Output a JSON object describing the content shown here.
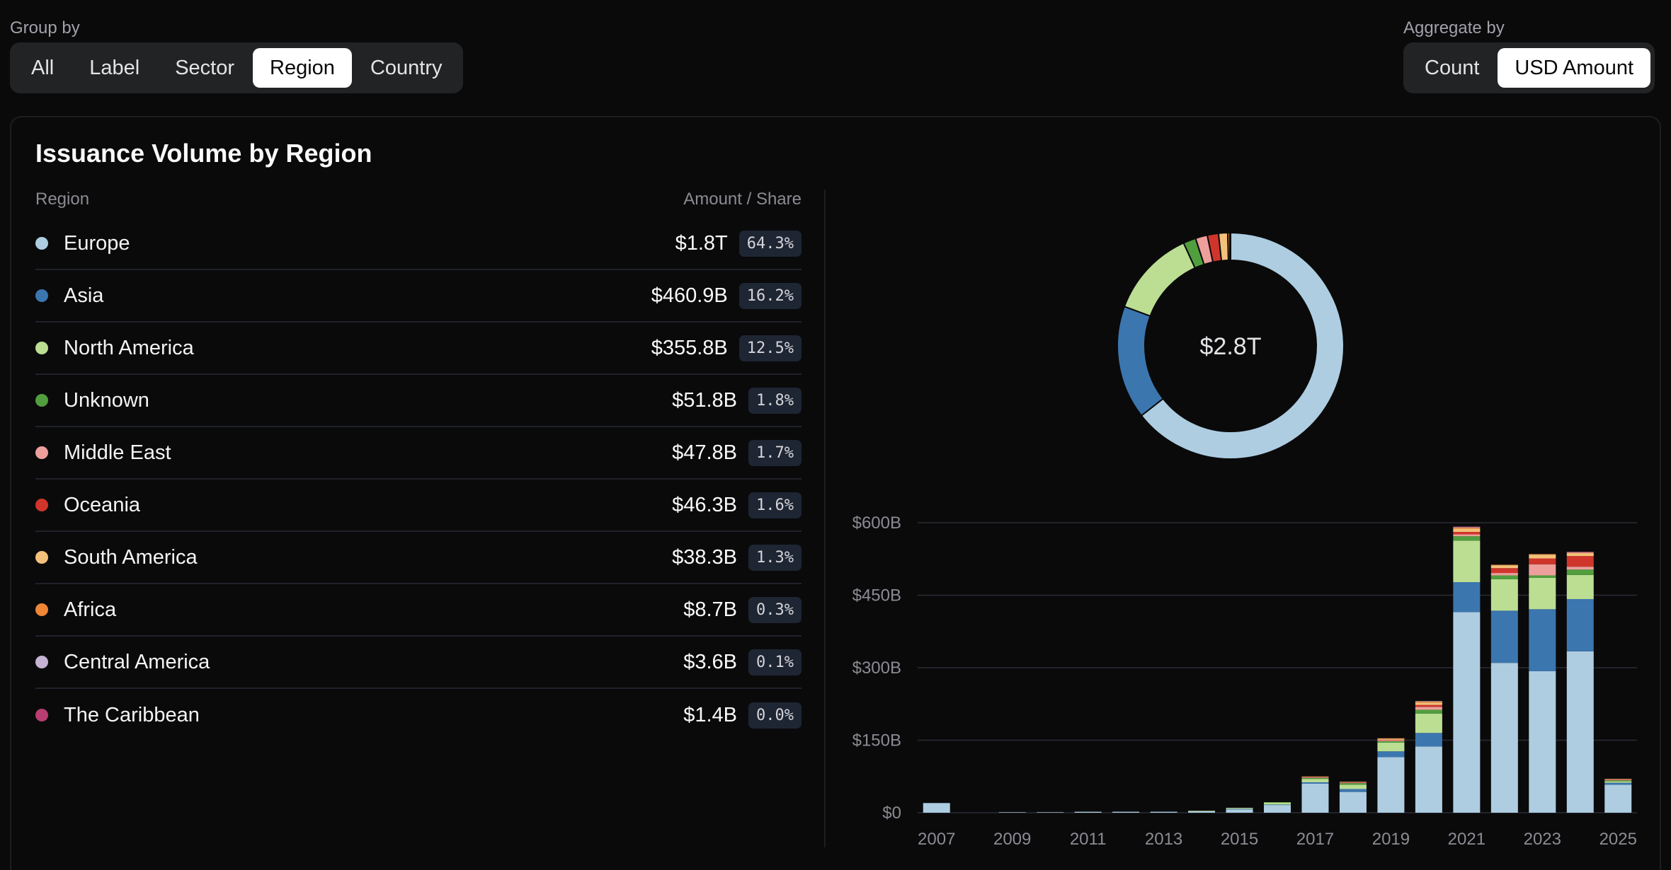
{
  "group_by": {
    "label": "Group by",
    "options": [
      "All",
      "Label",
      "Sector",
      "Region",
      "Country"
    ],
    "selected": "Region"
  },
  "aggregate_by": {
    "label": "Aggregate by",
    "options": [
      "Count",
      "USD Amount"
    ],
    "selected": "USD Amount"
  },
  "card": {
    "title": "Issuance Volume by Region",
    "col_region": "Region",
    "col_amount": "Amount / Share"
  },
  "regions": [
    {
      "name": "Europe",
      "amount": "$1.8T",
      "share": "64.3%",
      "color": "#aecde1"
    },
    {
      "name": "Asia",
      "amount": "$460.9B",
      "share": "16.2%",
      "color": "#3b76af"
    },
    {
      "name": "North America",
      "amount": "$355.8B",
      "share": "12.5%",
      "color": "#bbde93"
    },
    {
      "name": "Unknown",
      "amount": "$51.8B",
      "share": "1.8%",
      "color": "#519e3e"
    },
    {
      "name": "Middle East",
      "amount": "$47.8B",
      "share": "1.7%",
      "color": "#ed9f9c"
    },
    {
      "name": "Oceania",
      "amount": "$46.3B",
      "share": "1.6%",
      "color": "#d0352b"
    },
    {
      "name": "South America",
      "amount": "$38.3B",
      "share": "1.3%",
      "color": "#f3c17b"
    },
    {
      "name": "Africa",
      "amount": "$8.7B",
      "share": "0.3%",
      "color": "#ef8636"
    },
    {
      "name": "Central America",
      "amount": "$3.6B",
      "share": "0.1%",
      "color": "#c6b3d3"
    },
    {
      "name": "The Caribbean",
      "amount": "$1.4B",
      "share": "0.0%",
      "color": "#b83d71"
    }
  ],
  "chart_data": [
    {
      "type": "pie",
      "center_label": "$2.8T",
      "labels": [
        "Europe",
        "Asia",
        "North America",
        "Unknown",
        "Middle East",
        "Oceania",
        "South America",
        "Africa",
        "Central America",
        "The Caribbean"
      ],
      "values": [
        64.3,
        16.2,
        12.5,
        1.8,
        1.7,
        1.6,
        1.3,
        0.3,
        0.1,
        0.0
      ]
    },
    {
      "type": "bar",
      "stacked": true,
      "ylim": [
        0,
        600
      ],
      "yticks": [
        "$0",
        "$150B",
        "$300B",
        "$450B",
        "$600B"
      ],
      "categories": [
        "2007",
        "2008",
        "2009",
        "2010",
        "2011",
        "2012",
        "2013",
        "2014",
        "2015",
        "2016",
        "2017",
        "2018",
        "2019",
        "2020",
        "2021",
        "2022",
        "2023",
        "2024",
        "2025"
      ],
      "xtick_labels": [
        "2007",
        "2009",
        "2011",
        "2013",
        "2015",
        "2017",
        "2019",
        "2021",
        "2023",
        "2025"
      ],
      "series": [
        {
          "name": "Europe",
          "values": [
            20,
            0,
            1,
            1,
            2,
            2,
            2,
            3,
            7,
            16,
            60,
            43,
            115,
            137,
            415,
            310,
            293,
            334,
            58
          ]
        },
        {
          "name": "Asia",
          "values": [
            0,
            0,
            0,
            0,
            0,
            0,
            0,
            0,
            1,
            1,
            3,
            6,
            12,
            28,
            62,
            108,
            128,
            108,
            4
          ]
        },
        {
          "name": "North America",
          "values": [
            0,
            0,
            0,
            0,
            0,
            0,
            0,
            1,
            2,
            4,
            7,
            9,
            18,
            40,
            86,
            65,
            65,
            50,
            3
          ]
        },
        {
          "name": "Unknown",
          "values": [
            0,
            0,
            0,
            0,
            0,
            0,
            0,
            0,
            0,
            1,
            2,
            3,
            3,
            8,
            9,
            8,
            5,
            11,
            2
          ]
        },
        {
          "name": "Middle East",
          "values": [
            0,
            0,
            0,
            0,
            0,
            0,
            0,
            0,
            0,
            0,
            1,
            1,
            2,
            6,
            4,
            5,
            23,
            6,
            1
          ]
        },
        {
          "name": "Oceania",
          "values": [
            0,
            0,
            0,
            0,
            0,
            0,
            0,
            0,
            0,
            0,
            1,
            1,
            1,
            4,
            5,
            10,
            12,
            22,
            1
          ]
        },
        {
          "name": "South America",
          "values": [
            0,
            0,
            0,
            0,
            0,
            0,
            0,
            0,
            0,
            0,
            1,
            1,
            2,
            5,
            7,
            6,
            8,
            6,
            1
          ]
        },
        {
          "name": "Africa",
          "values": [
            0,
            0,
            0,
            0,
            0,
            0,
            0,
            0,
            0,
            0,
            0,
            0,
            1,
            2,
            2,
            1,
            1,
            1,
            0
          ]
        },
        {
          "name": "Central America",
          "values": [
            0,
            0,
            0,
            0,
            0,
            0,
            0,
            0,
            0,
            0,
            0,
            0,
            0,
            1,
            1,
            0,
            0,
            1,
            0
          ]
        },
        {
          "name": "The Caribbean",
          "values": [
            0,
            0,
            0,
            0,
            0,
            0,
            0,
            0,
            0,
            0,
            0,
            0,
            0,
            0,
            1,
            0,
            0,
            1,
            0
          ]
        }
      ]
    }
  ],
  "colors": {
    "grid": "#2a2d35",
    "tick_text": "#8b8b93",
    "donut_border": "#0a0a0b"
  }
}
